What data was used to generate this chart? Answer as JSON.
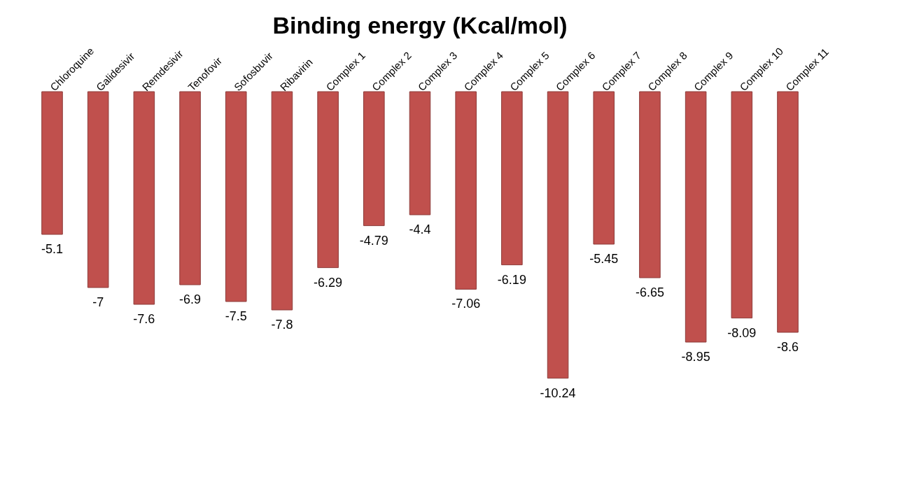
{
  "chart_data": {
    "type": "bar",
    "title": "Binding energy (Kcal/mol)",
    "categories": [
      "Chloroquine",
      "Galidesivir",
      "Remdesivir",
      "Tenofovir",
      "Sofosbuvir",
      "Ribavirin",
      "Complex 1",
      "Complex 2",
      "Complex 3",
      "Complex 4",
      "Complex 5",
      "Complex 6",
      "Complex 7",
      "Complex 8",
      "Complex 9",
      "Complex 10",
      "Complex 11"
    ],
    "values": [
      -5.1,
      -7,
      -7.6,
      -6.9,
      -7.5,
      -7.8,
      -6.29,
      -4.79,
      -4.4,
      -7.06,
      -6.19,
      -10.24,
      -5.45,
      -6.65,
      -8.95,
      -8.09,
      -8.6
    ],
    "color": "#c0504d",
    "data_labels": true,
    "tick_labels": "x"
  }
}
